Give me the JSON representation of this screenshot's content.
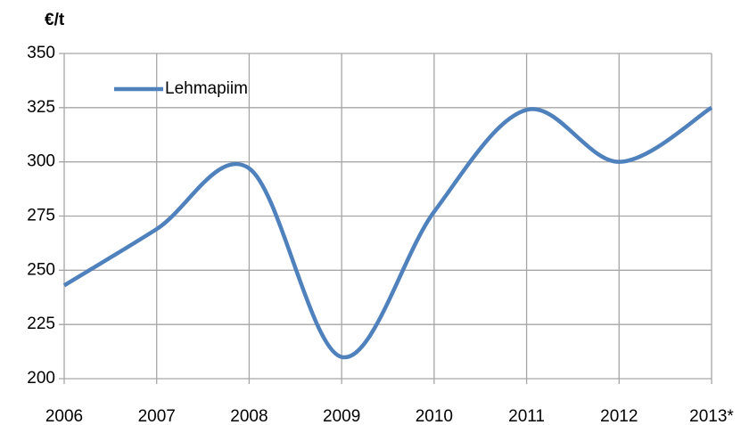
{
  "chart_data": {
    "type": "line",
    "y_axis_label": "€/t",
    "categories": [
      "2006",
      "2007",
      "2008",
      "2009",
      "2010",
      "2011",
      "2012",
      "2013*"
    ],
    "series": [
      {
        "name": "Lehmapiim",
        "color": "#4f81bd",
        "values": [
          243,
          269,
          297,
          210,
          277,
          324,
          300,
          325
        ]
      }
    ],
    "ylim": [
      200,
      350
    ],
    "yticks": [
      200,
      225,
      250,
      275,
      300,
      325,
      350
    ],
    "grid": true,
    "smooth": true,
    "legend": "top-left"
  }
}
